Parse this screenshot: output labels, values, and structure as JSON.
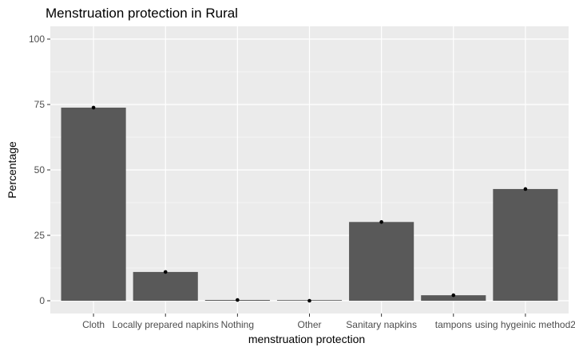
{
  "chart_data": {
    "type": "bar",
    "title": "Menstruation protection in Rural",
    "xlabel": "menstruation protection",
    "ylabel": "Percentage",
    "categories": [
      "Cloth",
      "Locally prepared napkins",
      "Nothing",
      "Other",
      "Sanitary napkins",
      "tampons",
      "using hygeinic method2"
    ],
    "values": [
      73.8,
      11.0,
      0.3,
      0.0,
      30.1,
      2.1,
      42.7
    ],
    "ylim": [
      0,
      100
    ],
    "yticks": [
      0,
      25,
      50,
      75,
      100
    ],
    "grid": true,
    "legend": "none",
    "colors": {
      "panel": "#ebebeb",
      "grid_major": "#ffffff",
      "bar": "#595959",
      "point": "#000000",
      "tick_text": "#4d4d4d",
      "tick_mark": "#333333"
    }
  }
}
